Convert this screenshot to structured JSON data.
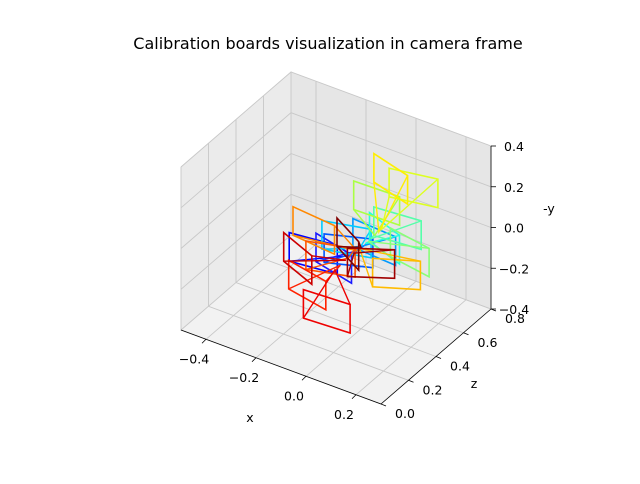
{
  "chart_data": {
    "type": "line3d",
    "title": "Calibration boards visualization in camera frame",
    "axes": {
      "x": {
        "label": "x",
        "range": [
          -0.5,
          0.3
        ],
        "ticks": [
          "−0.4",
          "−0.2",
          "0.0",
          "0.2"
        ]
      },
      "z": {
        "label": "z",
        "range": [
          0.0,
          0.8
        ],
        "ticks": [
          "0.0",
          "0.2",
          "0.4",
          "0.6",
          "0.8"
        ]
      },
      "y": {
        "label": "-y",
        "range": [
          -0.4,
          0.4
        ],
        "ticks": [
          "−0.4",
          "−0.2",
          "0.0",
          "0.2",
          "0.4"
        ]
      }
    },
    "grid": true,
    "legend": "none",
    "colormap": "jet",
    "camera_origin": [
      0.0,
      0.0,
      0.0
    ],
    "boards": [
      {
        "color": "#0000ff",
        "center": [
          -0.18,
          0.38,
          -0.1
        ],
        "rot": 0.2
      },
      {
        "color": "#1a1aff",
        "center": [
          -0.12,
          0.42,
          -0.12
        ],
        "rot": -0.35
      },
      {
        "color": "#0055ff",
        "center": [
          -0.05,
          0.4,
          -0.04
        ],
        "rot": 0.55
      },
      {
        "color": "#0099ff",
        "center": [
          0.02,
          0.46,
          0.0
        ],
        "rot": -0.1
      },
      {
        "color": "#00ccff",
        "center": [
          -0.08,
          0.44,
          -0.02
        ],
        "rot": 0.4
      },
      {
        "color": "#22ffdd",
        "center": [
          0.05,
          0.48,
          0.02
        ],
        "rot": -0.5
      },
      {
        "color": "#55ffaa",
        "center": [
          0.08,
          0.52,
          0.06
        ],
        "rot": 0.15
      },
      {
        "color": "#88ff77",
        "center": [
          0.14,
          0.5,
          -0.02
        ],
        "rot": -0.25
      },
      {
        "color": "#aaff44",
        "center": [
          -0.02,
          0.55,
          0.12
        ],
        "rot": 0.05
      },
      {
        "color": "#ddff22",
        "center": [
          0.1,
          0.6,
          0.22
        ],
        "rot": 0.3
      },
      {
        "color": "#ffee00",
        "center": [
          0.02,
          0.58,
          0.24
        ],
        "rot": -0.4
      },
      {
        "color": "#ffbb00",
        "center": [
          0.12,
          0.44,
          -0.1
        ],
        "rot": 0.65
      },
      {
        "color": "#ff8800",
        "center": [
          -0.2,
          0.42,
          -0.02
        ],
        "rot": -0.15
      },
      {
        "color": "#ff5500",
        "center": [
          -0.1,
          0.36,
          -0.08
        ],
        "rot": 0.45
      },
      {
        "color": "#ff2200",
        "center": [
          -0.16,
          0.3,
          -0.2
        ],
        "rot": -0.3
      },
      {
        "color": "#ee0000",
        "center": [
          -0.06,
          0.26,
          -0.26
        ],
        "rot": 0.1
      },
      {
        "color": "#cc0000",
        "center": [
          -0.22,
          0.34,
          -0.12
        ],
        "rot": -0.55
      },
      {
        "color": "#a00000",
        "center": [
          0.04,
          0.4,
          -0.06
        ],
        "rot": 0.7
      },
      {
        "color": "#800000",
        "center": [
          -0.08,
          0.45,
          -0.05
        ],
        "rot": -0.7
      }
    ]
  }
}
